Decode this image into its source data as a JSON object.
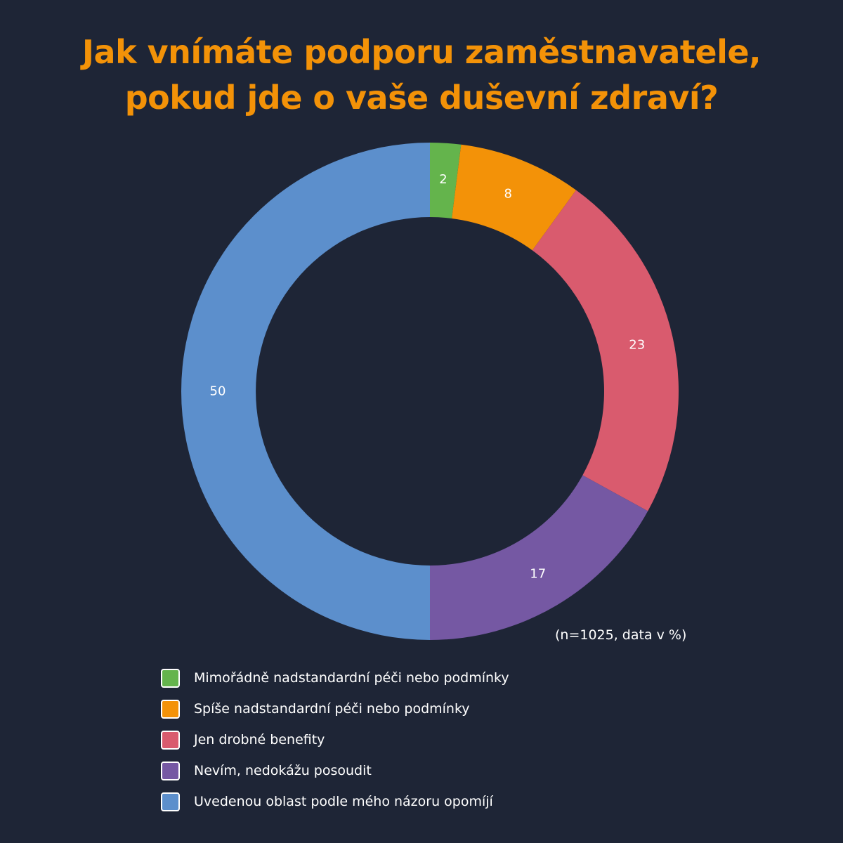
{
  "chart_data": {
    "type": "pie",
    "variant": "donut",
    "title_lines": [
      "Jak vnímáte podporu zaměstnavatele,",
      "pokud jde o vaše duševní zdraví?"
    ],
    "note": "(n=1025, data v %)",
    "legend_position": "bottom-left",
    "categories": [
      "Mimořádně nadstandardní péči nebo podmínky",
      "Spíše nadstandardní péči nebo podmínky",
      "Jen drobné benefity",
      "Nevím, nedokážu posoudit",
      "Uvedenou oblast podle mého názoru opomíjí"
    ],
    "values": [
      2,
      8,
      23,
      17,
      50
    ],
    "colors": [
      "#64b44c",
      "#f39208",
      "#d95b6e",
      "#7558a3",
      "#5c8fcc"
    ],
    "background_color": "#1e2536",
    "title_color": "#f39208"
  }
}
